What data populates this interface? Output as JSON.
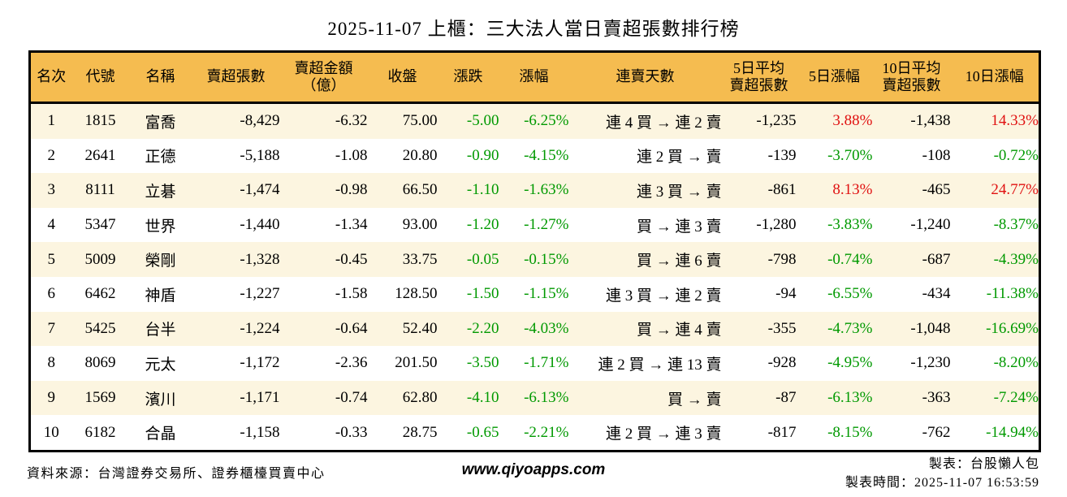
{
  "title": "2025-11-07 上櫃：三大法人當日賣超張數排行榜",
  "colors": {
    "up_red": "#e01111",
    "down_green": "#009900",
    "header_bg": "#f5bc50",
    "row_stripe": "#fcf5e0",
    "border": "#000000"
  },
  "chart_data": {
    "type": "table",
    "title": "2025-11-07 上櫃：三大法人當日賣超張數排行榜",
    "columns": [
      "名次",
      "代號",
      "名稱",
      "賣超張數",
      "賣超金額\n（億）",
      "收盤",
      "漲跌",
      "漲幅",
      "連賣天數",
      "5日平均\n賣超張數",
      "5日漲幅",
      "10日平均\n賣超張數",
      "10日漲幅"
    ],
    "rows": [
      {
        "rank": "1",
        "code": "1815",
        "name": "富喬",
        "net_sell_lots": "-8,429",
        "net_sell_amount": "-6.32",
        "close": "75.00",
        "change": "-5.00",
        "change_pct": "-6.25%",
        "streak": "連 4 買 → 連 2 賣",
        "avg5_net_sell": "-1,235",
        "pct5": "3.88%",
        "pct5_dir": "up",
        "avg10_net_sell": "-1,438",
        "pct10": "14.33%",
        "pct10_dir": "up"
      },
      {
        "rank": "2",
        "code": "2641",
        "name": "正德",
        "net_sell_lots": "-5,188",
        "net_sell_amount": "-1.08",
        "close": "20.80",
        "change": "-0.90",
        "change_pct": "-4.15%",
        "streak": "連 2 買 → 賣",
        "avg5_net_sell": "-139",
        "pct5": "-3.70%",
        "pct5_dir": "down",
        "avg10_net_sell": "-108",
        "pct10": "-0.72%",
        "pct10_dir": "down"
      },
      {
        "rank": "3",
        "code": "8111",
        "name": "立碁",
        "net_sell_lots": "-1,474",
        "net_sell_amount": "-0.98",
        "close": "66.50",
        "change": "-1.10",
        "change_pct": "-1.63%",
        "streak": "連 3 買 → 賣",
        "avg5_net_sell": "-861",
        "pct5": "8.13%",
        "pct5_dir": "up",
        "avg10_net_sell": "-465",
        "pct10": "24.77%",
        "pct10_dir": "up"
      },
      {
        "rank": "4",
        "code": "5347",
        "name": "世界",
        "net_sell_lots": "-1,440",
        "net_sell_amount": "-1.34",
        "close": "93.00",
        "change": "-1.20",
        "change_pct": "-1.27%",
        "streak": "買 → 連 3 賣",
        "avg5_net_sell": "-1,280",
        "pct5": "-3.83%",
        "pct5_dir": "down",
        "avg10_net_sell": "-1,240",
        "pct10": "-8.37%",
        "pct10_dir": "down"
      },
      {
        "rank": "5",
        "code": "5009",
        "name": "榮剛",
        "net_sell_lots": "-1,328",
        "net_sell_amount": "-0.45",
        "close": "33.75",
        "change": "-0.05",
        "change_pct": "-0.15%",
        "streak": "買 → 連 6 賣",
        "avg5_net_sell": "-798",
        "pct5": "-0.74%",
        "pct5_dir": "down",
        "avg10_net_sell": "-687",
        "pct10": "-4.39%",
        "pct10_dir": "down"
      },
      {
        "rank": "6",
        "code": "6462",
        "name": "神盾",
        "net_sell_lots": "-1,227",
        "net_sell_amount": "-1.58",
        "close": "128.50",
        "change": "-1.50",
        "change_pct": "-1.15%",
        "streak": "連 3 買 → 連 2 賣",
        "avg5_net_sell": "-94",
        "pct5": "-6.55%",
        "pct5_dir": "down",
        "avg10_net_sell": "-434",
        "pct10": "-11.38%",
        "pct10_dir": "down"
      },
      {
        "rank": "7",
        "code": "5425",
        "name": "台半",
        "net_sell_lots": "-1,224",
        "net_sell_amount": "-0.64",
        "close": "52.40",
        "change": "-2.20",
        "change_pct": "-4.03%",
        "streak": "買 → 連 4 賣",
        "avg5_net_sell": "-355",
        "pct5": "-4.73%",
        "pct5_dir": "down",
        "avg10_net_sell": "-1,048",
        "pct10": "-16.69%",
        "pct10_dir": "down"
      },
      {
        "rank": "8",
        "code": "8069",
        "name": "元太",
        "net_sell_lots": "-1,172",
        "net_sell_amount": "-2.36",
        "close": "201.50",
        "change": "-3.50",
        "change_pct": "-1.71%",
        "streak": "連 2 買 → 連 13 賣",
        "avg5_net_sell": "-928",
        "pct5": "-4.95%",
        "pct5_dir": "down",
        "avg10_net_sell": "-1,230",
        "pct10": "-8.20%",
        "pct10_dir": "down"
      },
      {
        "rank": "9",
        "code": "1569",
        "name": "濱川",
        "net_sell_lots": "-1,171",
        "net_sell_amount": "-0.74",
        "close": "62.80",
        "change": "-4.10",
        "change_pct": "-6.13%",
        "streak": "買 → 賣",
        "avg5_net_sell": "-87",
        "pct5": "-6.13%",
        "pct5_dir": "down",
        "avg10_net_sell": "-363",
        "pct10": "-7.24%",
        "pct10_dir": "down"
      },
      {
        "rank": "10",
        "code": "6182",
        "name": "合晶",
        "net_sell_lots": "-1,158",
        "net_sell_amount": "-0.33",
        "close": "28.75",
        "change": "-0.65",
        "change_pct": "-2.21%",
        "streak": "連 2 買 → 連 3 賣",
        "avg5_net_sell": "-817",
        "pct5": "-8.15%",
        "pct5_dir": "down",
        "avg10_net_sell": "-762",
        "pct10": "-14.94%",
        "pct10_dir": "down"
      }
    ]
  },
  "footer": {
    "source": "資料來源：台灣證券交易所、證券櫃檯買賣中心",
    "website": "www.qiyoapps.com",
    "author": "製表：台股懶人包",
    "timestamp": "製表時間：2025-11-07 16:53:59"
  }
}
